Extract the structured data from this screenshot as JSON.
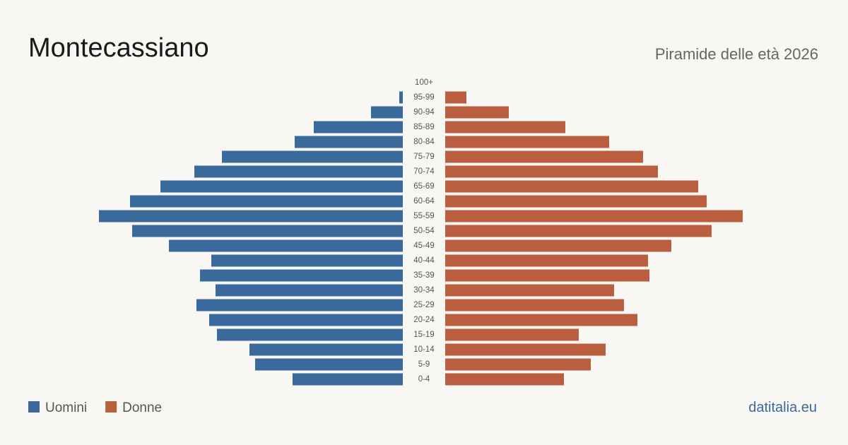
{
  "chart_data": {
    "type": "pyramid",
    "title": "Montecassiano",
    "subtitle": "Piramide delle età 2026",
    "source": "datitalia.eu",
    "categories": [
      "100+",
      "95-99",
      "90-94",
      "85-89",
      "80-84",
      "75-79",
      "70-74",
      "65-69",
      "60-64",
      "55-59",
      "50-54",
      "45-49",
      "40-44",
      "35-39",
      "30-34",
      "25-29",
      "20-24",
      "15-19",
      "10-14",
      "5-9",
      "0-4"
    ],
    "series": [
      {
        "name": "Uomini",
        "color": "#3a6a9c",
        "values": [
          0,
          5,
          45,
          126,
          153,
          256,
          295,
          343,
          386,
          430,
          383,
          331,
          271,
          287,
          265,
          292,
          274,
          263,
          217,
          209,
          156
        ]
      },
      {
        "name": "Donne",
        "color": "#b95e3e",
        "values": [
          0,
          30,
          90,
          170,
          232,
          280,
          301,
          358,
          370,
          421,
          377,
          320,
          287,
          289,
          239,
          253,
          272,
          189,
          227,
          206,
          168
        ]
      }
    ]
  }
}
